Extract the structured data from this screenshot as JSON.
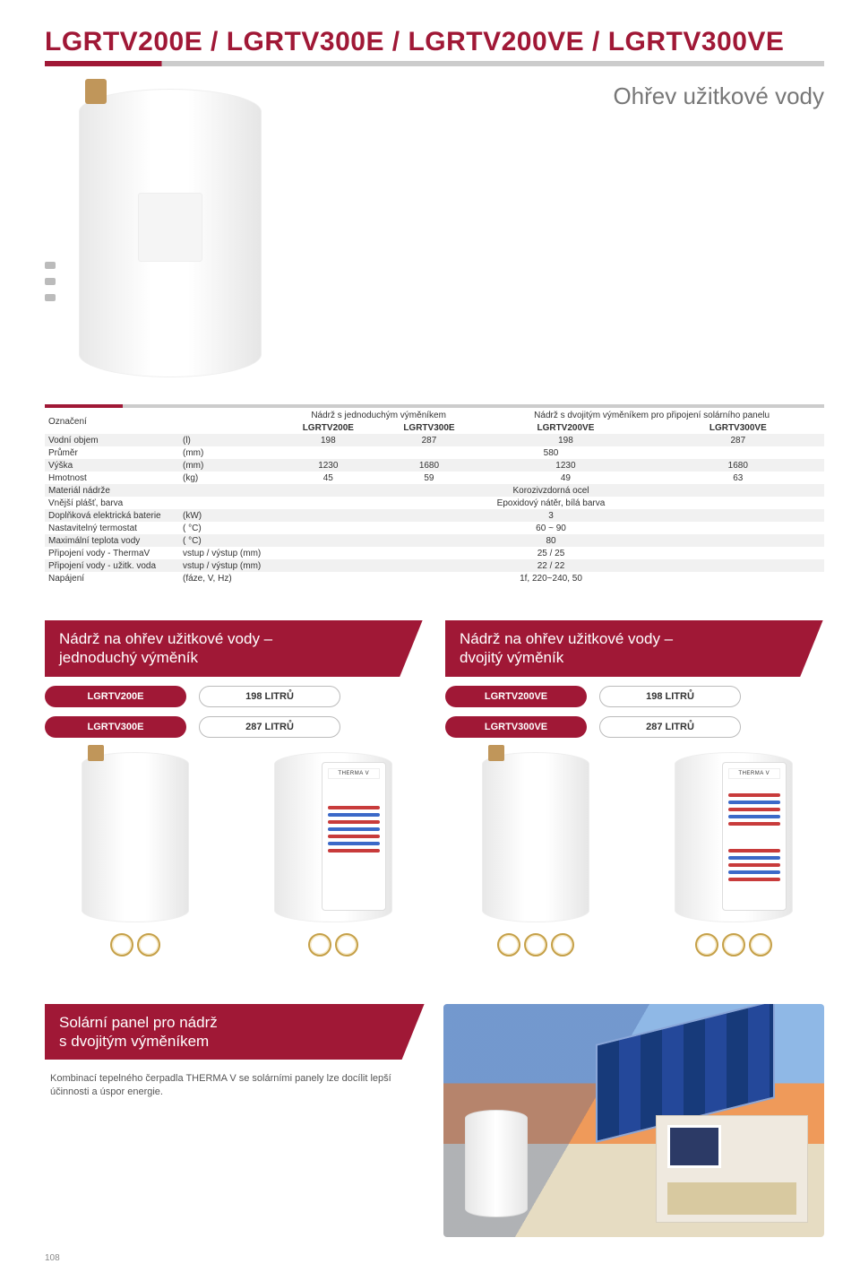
{
  "page_number": "108",
  "title": "LGRTV200E / LGRTV300E / LGRTV200VE / LGRTV300VE",
  "subtitle": "Ohřev užitkové vody",
  "spec_table": {
    "header_label": "Označení",
    "group_headers": [
      "Nádrž s jednoduchým výměníkem",
      "Nádrž s dvojitým výměníkem pro připojení solárního panelu"
    ],
    "model_headers": [
      "LGRTV200E",
      "LGRTV300E",
      "LGRTV200VE",
      "LGRTV300VE"
    ],
    "rows": [
      {
        "label": "Vodní objem",
        "unit": "(l)",
        "vals": [
          "198",
          "287",
          "198",
          "287"
        ]
      },
      {
        "label": "Průměr",
        "unit": "(mm)",
        "span": "580"
      },
      {
        "label": "Výška",
        "unit": "(mm)",
        "vals": [
          "1230",
          "1680",
          "1230",
          "1680"
        ]
      },
      {
        "label": "Hmotnost",
        "unit": "(kg)",
        "vals": [
          "45",
          "59",
          "49",
          "63"
        ]
      },
      {
        "label": "Materiál nádrže",
        "unit": "",
        "span": "Korozivzdorná ocel"
      },
      {
        "label": "Vnější plášť, barva",
        "unit": "",
        "span": "Epoxidový nátěr, bílá barva"
      },
      {
        "label": "Doplňková elektrická baterie",
        "unit": "(kW)",
        "span": "3"
      },
      {
        "label": "Nastavitelný termostat",
        "unit": "( °C)",
        "span": "60 ~ 90"
      },
      {
        "label": "Maximální teplota vody",
        "unit": "( °C)",
        "span": "80"
      },
      {
        "label": "Připojení vody - ThermaV",
        "unit": "vstup / výstup (mm)",
        "span": "25 / 25"
      },
      {
        "label": "Připojení vody - užitk. voda",
        "unit": "vstup / výstup (mm)",
        "span": "22 / 22"
      },
      {
        "label": "Napájení",
        "unit": "(fáze, V, Hz)",
        "span": "1f, 220~240, 50"
      }
    ]
  },
  "tank_panels": {
    "left": {
      "title_l1": "Nádrž na ohřev užitkové vody –",
      "title_l2": "jednoduchý výměník",
      "rows": [
        {
          "model": "LGRTV200E",
          "cap": "198 LITRŮ"
        },
        {
          "model": "LGRTV300E",
          "cap": "287 LITRŮ"
        }
      ],
      "brand": "THERMA V"
    },
    "right": {
      "title_l1": "Nádrž na ohřev užitkové vody –",
      "title_l2": "dvojitý výměník",
      "rows": [
        {
          "model": "LGRTV200VE",
          "cap": "198 LITRŮ"
        },
        {
          "model": "LGRTV300VE",
          "cap": "287 LITRŮ"
        }
      ],
      "brand": "THERMA V"
    }
  },
  "solar": {
    "title_l1": "Solární panel pro nádrž",
    "title_l2": "s  dvojitým výměníkem",
    "desc": "Kombinací tepelného čerpadla THERMA V se solárními panely lze docílit lepší účinnosti a úspor energie."
  },
  "colors": {
    "brand": "#a01836",
    "zebra": "#f1f1f1",
    "text_muted": "#777777"
  }
}
